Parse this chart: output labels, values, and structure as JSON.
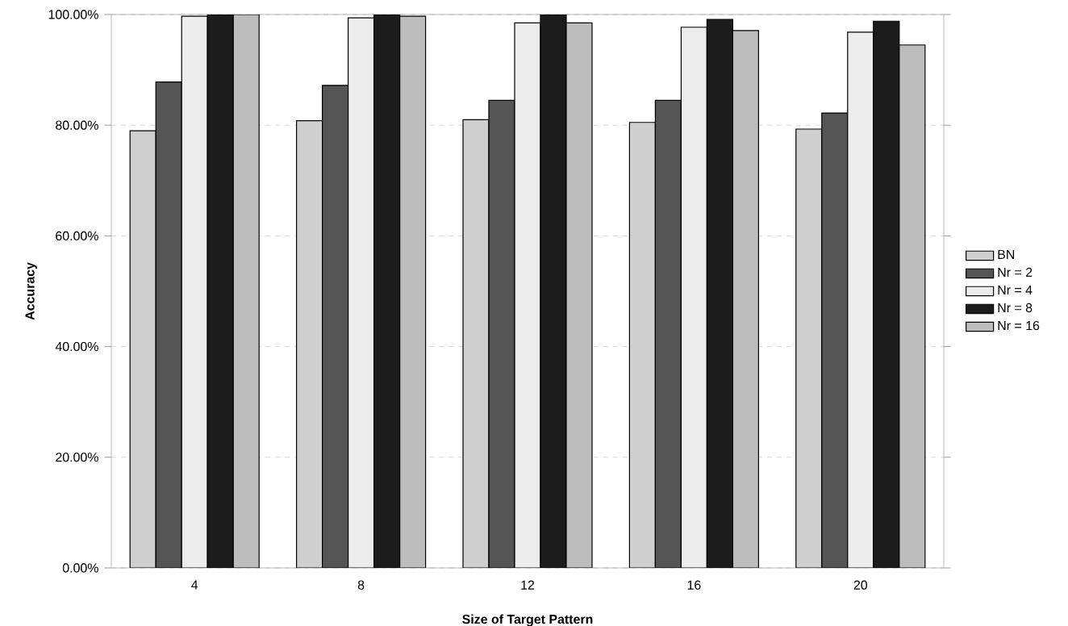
{
  "chart_data": {
    "type": "bar",
    "xlabel": "Size of Target Pattern",
    "ylabel": "Accuracy",
    "categories": [
      "4",
      "8",
      "12",
      "16",
      "20"
    ],
    "series": [
      {
        "name": "BN",
        "color": "#cfcfcf",
        "values": [
          79.0,
          80.8,
          81.0,
          80.5,
          79.3
        ]
      },
      {
        "name": "Nr = 2",
        "color": "#555555",
        "values": [
          87.8,
          87.2,
          84.5,
          84.5,
          82.2
        ]
      },
      {
        "name": "Nr = 4",
        "color": "#ececec",
        "values": [
          99.7,
          99.4,
          98.5,
          97.7,
          96.8
        ]
      },
      {
        "name": "Nr = 8",
        "color": "#1c1c1c",
        "values": [
          100,
          100,
          100,
          99.1,
          98.8
        ]
      },
      {
        "name": "Nr = 16",
        "color": "#bdbdbd",
        "values": [
          100,
          99.7,
          98.5,
          97.1,
          94.5
        ]
      }
    ],
    "ylim": [
      0,
      100
    ],
    "yticks": [
      {
        "value": 0,
        "label": "0.00%"
      },
      {
        "value": 20,
        "label": "20.00%"
      },
      {
        "value": 40,
        "label": "40.00%"
      },
      {
        "value": 60,
        "label": "60.00%"
      },
      {
        "value": 80,
        "label": "80.00%"
      },
      {
        "value": 100,
        "label": "100.00%"
      }
    ],
    "grid": "y",
    "legend": "right"
  }
}
